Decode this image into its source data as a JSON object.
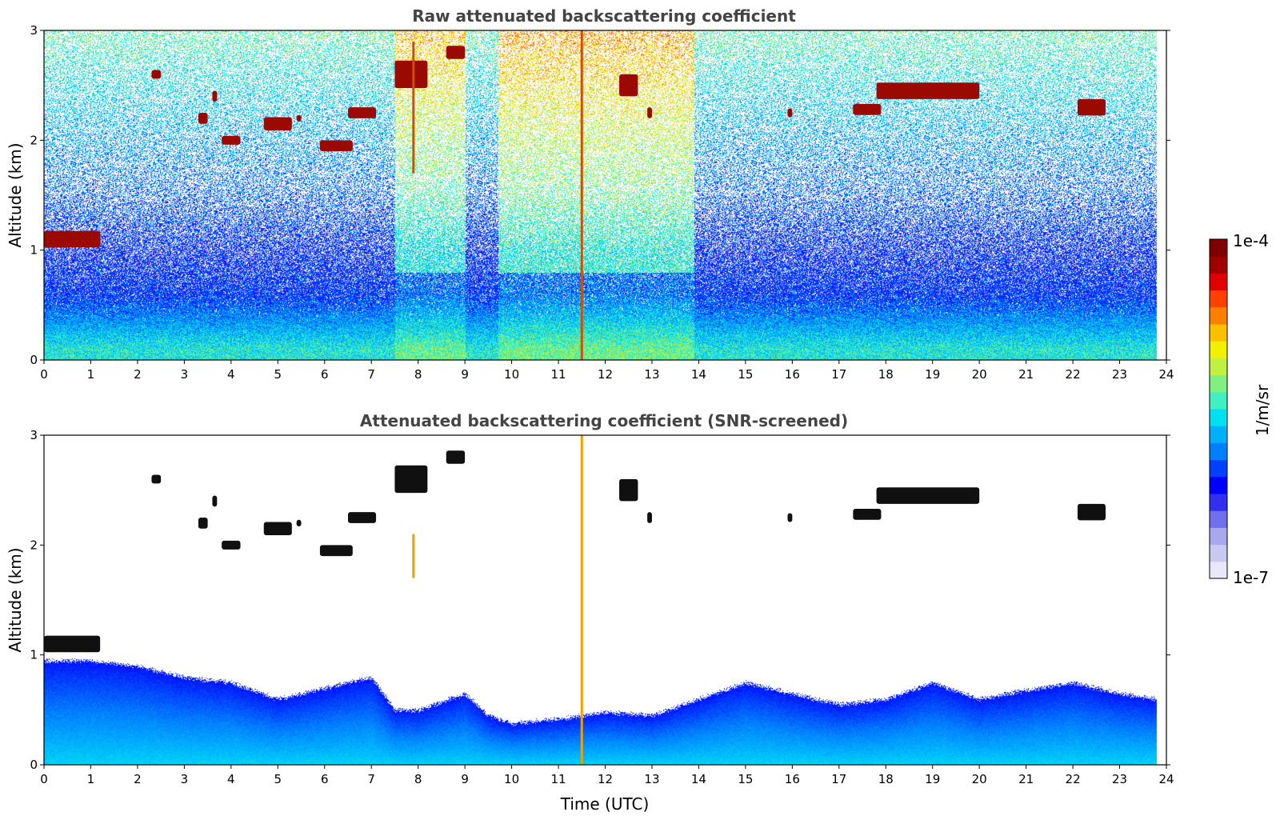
{
  "chart_data": [
    {
      "type": "heatmap",
      "title": "Raw attenuated backscattering coefficient",
      "xlabel": "",
      "ylabel": "Altitude (km)",
      "xlim": [
        0,
        24
      ],
      "ylim": [
        0,
        3
      ],
      "xticks": [
        "0",
        "1",
        "2",
        "3",
        "4",
        "5",
        "6",
        "7",
        "8",
        "9",
        "10",
        "11",
        "12",
        "13",
        "14",
        "15",
        "16",
        "17",
        "18",
        "19",
        "20",
        "21",
        "22",
        "23",
        "24"
      ],
      "yticks": [
        "0",
        "1",
        "2",
        "3"
      ],
      "data_end_hour": 23.8,
      "background_layer": [
        {
          "altitude_km": 0.1,
          "level": 0.5
        },
        {
          "altitude_km": 0.3,
          "level": 0.42
        },
        {
          "altitude_km": 0.6,
          "level": 0.3
        },
        {
          "altitude_km": 1.0,
          "level": 0.28
        },
        {
          "altitude_km": 2.0,
          "level": 0.4
        },
        {
          "altitude_km": 3.0,
          "level": 0.55
        }
      ],
      "noisy_periods": [
        {
          "start_h": 7.5,
          "end_h": 9.0,
          "level": 0.7
        },
        {
          "start_h": 9.7,
          "end_h": 13.9,
          "level": 0.72
        }
      ],
      "clouds": [
        {
          "t0": 0.0,
          "t1": 1.2,
          "alt_km": 1.1,
          "thick_km": 0.15
        },
        {
          "t0": 2.3,
          "t1": 2.5,
          "alt_km": 2.6,
          "thick_km": 0.08
        },
        {
          "t0": 3.6,
          "t1": 3.7,
          "alt_km": 2.4,
          "thick_km": 0.1
        },
        {
          "t0": 3.3,
          "t1": 3.5,
          "alt_km": 2.2,
          "thick_km": 0.1
        },
        {
          "t0": 3.8,
          "t1": 4.2,
          "alt_km": 2.0,
          "thick_km": 0.08
        },
        {
          "t0": 4.7,
          "t1": 5.3,
          "alt_km": 2.15,
          "thick_km": 0.12
        },
        {
          "t0": 5.4,
          "t1": 5.5,
          "alt_km": 2.2,
          "thick_km": 0.06
        },
        {
          "t0": 5.9,
          "t1": 6.6,
          "alt_km": 1.95,
          "thick_km": 0.1
        },
        {
          "t0": 6.5,
          "t1": 7.1,
          "alt_km": 2.25,
          "thick_km": 0.1
        },
        {
          "t0": 7.5,
          "t1": 8.2,
          "alt_km": 2.6,
          "thick_km": 0.25
        },
        {
          "t0": 8.6,
          "t1": 9.0,
          "alt_km": 2.8,
          "thick_km": 0.12
        },
        {
          "t0": 12.3,
          "t1": 12.7,
          "alt_km": 2.5,
          "thick_km": 0.2
        },
        {
          "t0": 12.9,
          "t1": 13.0,
          "alt_km": 2.25,
          "thick_km": 0.1
        },
        {
          "t0": 15.9,
          "t1": 16.0,
          "alt_km": 2.25,
          "thick_km": 0.08
        },
        {
          "t0": 17.3,
          "t1": 17.9,
          "alt_km": 2.28,
          "thick_km": 0.1
        },
        {
          "t0": 17.8,
          "t1": 20.0,
          "alt_km": 2.45,
          "thick_km": 0.15
        },
        {
          "t0": 22.1,
          "t1": 22.7,
          "alt_km": 2.3,
          "thick_km": 0.15
        }
      ],
      "spikes": [
        {
          "t": 7.9,
          "alt_from_km": 1.7,
          "alt_to_km": 2.9
        },
        {
          "t": 11.5,
          "alt_from_km": 0.0,
          "alt_to_km": 3.0
        }
      ]
    },
    {
      "type": "heatmap",
      "title": "Attenuated backscattering coefficient (SNR-screened)",
      "xlabel": "Time (UTC)",
      "ylabel": "Altitude (km)",
      "xlim": [
        0,
        24
      ],
      "ylim": [
        0,
        3
      ],
      "xticks": [
        "0",
        "1",
        "2",
        "3",
        "4",
        "5",
        "6",
        "7",
        "8",
        "9",
        "10",
        "11",
        "12",
        "13",
        "14",
        "15",
        "16",
        "17",
        "18",
        "19",
        "20",
        "21",
        "22",
        "23",
        "24"
      ],
      "yticks": [
        "0",
        "1",
        "2",
        "3"
      ],
      "data_end_hour": 23.8,
      "boundary_layer_top_km": [
        {
          "t": 0,
          "h": 0.95
        },
        {
          "t": 1,
          "h": 0.95
        },
        {
          "t": 2,
          "h": 0.9
        },
        {
          "t": 3,
          "h": 0.8
        },
        {
          "t": 4,
          "h": 0.75
        },
        {
          "t": 5,
          "h": 0.6
        },
        {
          "t": 6,
          "h": 0.7
        },
        {
          "t": 7,
          "h": 0.8
        },
        {
          "t": 7.5,
          "h": 0.5
        },
        {
          "t": 8,
          "h": 0.5
        },
        {
          "t": 9,
          "h": 0.65
        },
        {
          "t": 9.5,
          "h": 0.45
        },
        {
          "t": 10,
          "h": 0.38
        },
        {
          "t": 11,
          "h": 0.42
        },
        {
          "t": 12,
          "h": 0.48
        },
        {
          "t": 13,
          "h": 0.45
        },
        {
          "t": 14,
          "h": 0.6
        },
        {
          "t": 15,
          "h": 0.75
        },
        {
          "t": 16,
          "h": 0.65
        },
        {
          "t": 17,
          "h": 0.55
        },
        {
          "t": 18,
          "h": 0.6
        },
        {
          "t": 19,
          "h": 0.75
        },
        {
          "t": 20,
          "h": 0.6
        },
        {
          "t": 21,
          "h": 0.68
        },
        {
          "t": 22,
          "h": 0.75
        },
        {
          "t": 23,
          "h": 0.65
        },
        {
          "t": 23.8,
          "h": 0.6
        }
      ],
      "clouds": [
        {
          "t0": 0.0,
          "t1": 1.2,
          "alt_km": 1.1,
          "thick_km": 0.15
        },
        {
          "t0": 2.3,
          "t1": 2.5,
          "alt_km": 2.6,
          "thick_km": 0.08
        },
        {
          "t0": 3.6,
          "t1": 3.7,
          "alt_km": 2.4,
          "thick_km": 0.1
        },
        {
          "t0": 3.3,
          "t1": 3.5,
          "alt_km": 2.2,
          "thick_km": 0.1
        },
        {
          "t0": 3.8,
          "t1": 4.2,
          "alt_km": 2.0,
          "thick_km": 0.08
        },
        {
          "t0": 4.7,
          "t1": 5.3,
          "alt_km": 2.15,
          "thick_km": 0.12
        },
        {
          "t0": 5.4,
          "t1": 5.5,
          "alt_km": 2.2,
          "thick_km": 0.06
        },
        {
          "t0": 5.9,
          "t1": 6.6,
          "alt_km": 1.95,
          "thick_km": 0.1
        },
        {
          "t0": 6.5,
          "t1": 7.1,
          "alt_km": 2.25,
          "thick_km": 0.1
        },
        {
          "t0": 7.5,
          "t1": 8.2,
          "alt_km": 2.6,
          "thick_km": 0.25
        },
        {
          "t0": 8.6,
          "t1": 9.0,
          "alt_km": 2.8,
          "thick_km": 0.12
        },
        {
          "t0": 12.3,
          "t1": 12.7,
          "alt_km": 2.5,
          "thick_km": 0.2
        },
        {
          "t0": 12.9,
          "t1": 13.0,
          "alt_km": 2.25,
          "thick_km": 0.1
        },
        {
          "t0": 15.9,
          "t1": 16.0,
          "alt_km": 2.25,
          "thick_km": 0.08
        },
        {
          "t0": 17.3,
          "t1": 17.9,
          "alt_km": 2.28,
          "thick_km": 0.1
        },
        {
          "t0": 17.8,
          "t1": 20.0,
          "alt_km": 2.45,
          "thick_km": 0.15
        },
        {
          "t0": 22.1,
          "t1": 22.7,
          "alt_km": 2.3,
          "thick_km": 0.15
        }
      ],
      "spikes": [
        {
          "t": 7.9,
          "alt_from_km": 1.7,
          "alt_to_km": 2.1
        },
        {
          "t": 11.5,
          "alt_from_km": 0.0,
          "alt_to_km": 3.0
        }
      ]
    }
  ],
  "colorbar": {
    "label": "1/m/sr",
    "max_label": "1e-4",
    "min_label": "1e-7",
    "colors": [
      "#e8e8f8",
      "#c8c8f0",
      "#a8a8ee",
      "#7070ee",
      "#3030f0",
      "#0000ff",
      "#0040ff",
      "#0080ff",
      "#00b0ff",
      "#00e0f0",
      "#40f0c0",
      "#80f080",
      "#c0f040",
      "#f0f000",
      "#ffc000",
      "#ff8000",
      "#ff4000",
      "#e00000",
      "#a00000",
      "#800000"
    ]
  }
}
